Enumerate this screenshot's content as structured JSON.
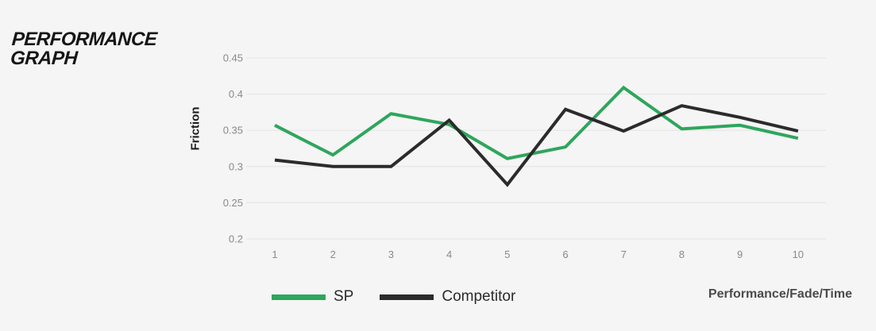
{
  "title": {
    "line1": "PERFORMANCE",
    "line2": "GRAPH"
  },
  "chart_data": {
    "type": "line",
    "x": [
      1,
      2,
      3,
      4,
      5,
      6,
      7,
      8,
      9,
      10
    ],
    "series": [
      {
        "name": "SP",
        "color": "#2ea65c",
        "values": [
          0.357,
          0.316,
          0.373,
          0.358,
          0.311,
          0.327,
          0.409,
          0.352,
          0.357,
          0.339
        ]
      },
      {
        "name": "Competitor",
        "color": "#2b2b2b",
        "values": [
          0.309,
          0.3,
          0.3,
          0.364,
          0.275,
          0.379,
          0.349,
          0.384,
          0.368,
          0.349
        ]
      }
    ],
    "title": "PERFORMANCE GRAPH",
    "ylabel": "Friction",
    "xlabel": "Performance/Fade/Time",
    "ylim": [
      0.2,
      0.45
    ],
    "yticks": [
      0.45,
      0.4,
      0.35,
      0.3,
      0.25,
      0.2
    ],
    "grid": true,
    "legend_position": "bottom"
  },
  "colors": {
    "background": "#f5f5f5",
    "gridline": "#e4e4e4",
    "tick_label": "#8a8a8a",
    "sp_green": "#2ea65c",
    "competitor_black": "#2b2b2b"
  }
}
